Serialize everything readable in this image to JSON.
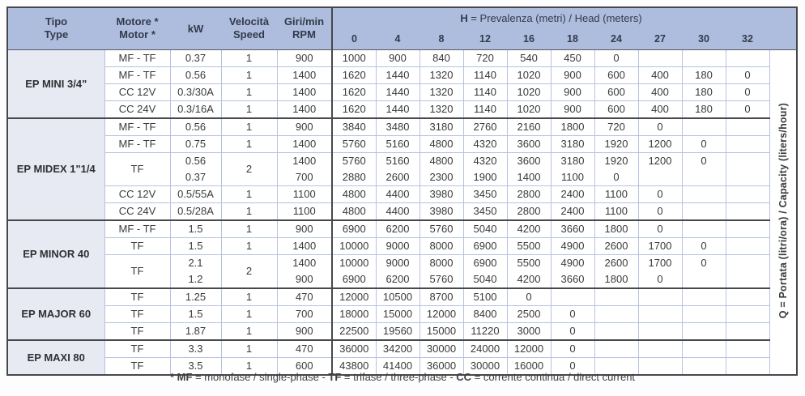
{
  "header": {
    "tipo": [
      "Tipo",
      "Type"
    ],
    "motore": [
      "Motore *",
      "Motor *"
    ],
    "kw": "kW",
    "velocita": [
      "Velocità",
      "Speed"
    ],
    "giri": [
      "Giri/min",
      "RPM"
    ],
    "h_title": {
      "bold": "H",
      "rest": " = Prevalenza (metri) / Head (meters)"
    },
    "head_cols": [
      "0",
      "4",
      "8",
      "12",
      "16",
      "18",
      "24",
      "27",
      "30",
      "32"
    ]
  },
  "q_label": "Q = Portata (litri/ora) / Capacity (liters/hour)",
  "colors": {
    "header_blue": "#aebcde",
    "group_lavender": "#e7e9f3",
    "grid_light": "#b5c2e2",
    "grid_dark": "#47484b"
  },
  "groups": [
    {
      "name": "EP MINI 3/4\"",
      "rows": [
        {
          "motor": "MF - TF",
          "kw": [
            "0.37"
          ],
          "speed": "1",
          "rpm": [
            "900"
          ],
          "q": [
            [
              "1000"
            ],
            [
              "900"
            ],
            [
              "840"
            ],
            [
              "720"
            ],
            [
              "540"
            ],
            [
              "450"
            ],
            [
              "0"
            ],
            [
              ""
            ],
            [
              ""
            ],
            [
              ""
            ]
          ]
        },
        {
          "motor": "MF - TF",
          "kw": [
            "0.56"
          ],
          "speed": "1",
          "rpm": [
            "1400"
          ],
          "q": [
            [
              "1620"
            ],
            [
              "1440"
            ],
            [
              "1320"
            ],
            [
              "1140"
            ],
            [
              "1020"
            ],
            [
              "900"
            ],
            [
              "600"
            ],
            [
              "400"
            ],
            [
              "180"
            ],
            [
              "0"
            ]
          ]
        },
        {
          "motor": "CC 12V",
          "kw": [
            "0.3/30A"
          ],
          "speed": "1",
          "rpm": [
            "1400"
          ],
          "q": [
            [
              "1620"
            ],
            [
              "1440"
            ],
            [
              "1320"
            ],
            [
              "1140"
            ],
            [
              "1020"
            ],
            [
              "900"
            ],
            [
              "600"
            ],
            [
              "400"
            ],
            [
              "180"
            ],
            [
              "0"
            ]
          ]
        },
        {
          "motor": "CC 24V",
          "kw": [
            "0.3/16A"
          ],
          "speed": "1",
          "rpm": [
            "1400"
          ],
          "q": [
            [
              "1620"
            ],
            [
              "1440"
            ],
            [
              "1320"
            ],
            [
              "1140"
            ],
            [
              "1020"
            ],
            [
              "900"
            ],
            [
              "600"
            ],
            [
              "400"
            ],
            [
              "180"
            ],
            [
              "0"
            ]
          ]
        }
      ]
    },
    {
      "name": "EP MIDEX 1\"1/4",
      "rows": [
        {
          "motor": "MF - TF",
          "kw": [
            "0.56"
          ],
          "speed": "1",
          "rpm": [
            "900"
          ],
          "q": [
            [
              "3840"
            ],
            [
              "3480"
            ],
            [
              "3180"
            ],
            [
              "2760"
            ],
            [
              "2160"
            ],
            [
              "1800"
            ],
            [
              "720"
            ],
            [
              "0"
            ],
            [
              ""
            ],
            [
              ""
            ]
          ]
        },
        {
          "motor": "MF - TF",
          "kw": [
            "0.75"
          ],
          "speed": "1",
          "rpm": [
            "1400"
          ],
          "q": [
            [
              "5760"
            ],
            [
              "5160"
            ],
            [
              "4800"
            ],
            [
              "4320"
            ],
            [
              "3600"
            ],
            [
              "3180"
            ],
            [
              "1920"
            ],
            [
              "1200"
            ],
            [
              "0"
            ],
            [
              ""
            ]
          ]
        },
        {
          "motor": "TF",
          "double": true,
          "kw": [
            "0.56",
            "0.37"
          ],
          "speed": "2",
          "rpm": [
            "1400",
            "700"
          ],
          "q": [
            [
              "5760",
              "2880"
            ],
            [
              "5160",
              "2600"
            ],
            [
              "4800",
              "2300"
            ],
            [
              "4320",
              "1900"
            ],
            [
              "3600",
              "1400"
            ],
            [
              "3180",
              "1100"
            ],
            [
              "1920",
              "0"
            ],
            [
              "1200",
              ""
            ],
            [
              "0",
              ""
            ],
            [
              "",
              ""
            ]
          ]
        },
        {
          "motor": "CC 12V",
          "kw": [
            "0.5/55A"
          ],
          "speed": "1",
          "rpm": [
            "1100"
          ],
          "q": [
            [
              "4800"
            ],
            [
              "4400"
            ],
            [
              "3980"
            ],
            [
              "3450"
            ],
            [
              "2800"
            ],
            [
              "2400"
            ],
            [
              "1100"
            ],
            [
              "0"
            ],
            [
              ""
            ],
            [
              ""
            ]
          ]
        },
        {
          "motor": "CC 24V",
          "kw": [
            "0.5/28A"
          ],
          "speed": "1",
          "rpm": [
            "1100"
          ],
          "q": [
            [
              "4800"
            ],
            [
              "4400"
            ],
            [
              "3980"
            ],
            [
              "3450"
            ],
            [
              "2800"
            ],
            [
              "2400"
            ],
            [
              "1100"
            ],
            [
              "0"
            ],
            [
              ""
            ],
            [
              ""
            ]
          ]
        }
      ]
    },
    {
      "name": "EP MINOR 40",
      "rows": [
        {
          "motor": "MF - TF",
          "kw": [
            "1.5"
          ],
          "speed": "1",
          "rpm": [
            "900"
          ],
          "q": [
            [
              "6900"
            ],
            [
              "6200"
            ],
            [
              "5760"
            ],
            [
              "5040"
            ],
            [
              "4200"
            ],
            [
              "3660"
            ],
            [
              "1800"
            ],
            [
              "0"
            ],
            [
              ""
            ],
            [
              ""
            ]
          ]
        },
        {
          "motor": "TF",
          "kw": [
            "1.5"
          ],
          "speed": "1",
          "rpm": [
            "1400"
          ],
          "q": [
            [
              "10000"
            ],
            [
              "9000"
            ],
            [
              "8000"
            ],
            [
              "6900"
            ],
            [
              "5500"
            ],
            [
              "4900"
            ],
            [
              "2600"
            ],
            [
              "1700"
            ],
            [
              "0"
            ],
            [
              ""
            ]
          ]
        },
        {
          "motor": "TF",
          "double": true,
          "kw": [
            "2.1",
            "1.2"
          ],
          "speed": "2",
          "rpm": [
            "1400",
            "900"
          ],
          "q": [
            [
              "10000",
              "6900"
            ],
            [
              "9000",
              "6200"
            ],
            [
              "8000",
              "5760"
            ],
            [
              "6900",
              "5040"
            ],
            [
              "5500",
              "4200"
            ],
            [
              "4900",
              "3660"
            ],
            [
              "2600",
              "1800"
            ],
            [
              "1700",
              "0"
            ],
            [
              "0",
              ""
            ],
            [
              "",
              ""
            ]
          ]
        }
      ]
    },
    {
      "name": "EP MAJOR 60",
      "rows": [
        {
          "motor": "TF",
          "kw": [
            "1.25"
          ],
          "speed": "1",
          "rpm": [
            "470"
          ],
          "q": [
            [
              "12000"
            ],
            [
              "10500"
            ],
            [
              "8700"
            ],
            [
              "5100"
            ],
            [
              "0"
            ],
            [
              ""
            ],
            [
              ""
            ],
            [
              ""
            ],
            [
              ""
            ],
            [
              ""
            ]
          ]
        },
        {
          "motor": "TF",
          "kw": [
            "1.5"
          ],
          "speed": "1",
          "rpm": [
            "700"
          ],
          "q": [
            [
              "18000"
            ],
            [
              "15000"
            ],
            [
              "12000"
            ],
            [
              "8400"
            ],
            [
              "2500"
            ],
            [
              "0"
            ],
            [
              ""
            ],
            [
              ""
            ],
            [
              ""
            ],
            [
              ""
            ]
          ]
        },
        {
          "motor": "TF",
          "kw": [
            "1.87"
          ],
          "speed": "1",
          "rpm": [
            "900"
          ],
          "q": [
            [
              "22500"
            ],
            [
              "19560"
            ],
            [
              "15000"
            ],
            [
              "11220"
            ],
            [
              "3000"
            ],
            [
              "0"
            ],
            [
              ""
            ],
            [
              ""
            ],
            [
              ""
            ],
            [
              ""
            ]
          ]
        }
      ]
    },
    {
      "name": "EP MAXI 80",
      "rows": [
        {
          "motor": "TF",
          "kw": [
            "3.3"
          ],
          "speed": "1",
          "rpm": [
            "470"
          ],
          "q": [
            [
              "36000"
            ],
            [
              "34200"
            ],
            [
              "30000"
            ],
            [
              "24000"
            ],
            [
              "12000"
            ],
            [
              "0"
            ],
            [
              ""
            ],
            [
              ""
            ],
            [
              ""
            ],
            [
              ""
            ]
          ]
        },
        {
          "motor": "TF",
          "kw": [
            "3.5"
          ],
          "speed": "1",
          "rpm": [
            "600"
          ],
          "q": [
            [
              "43800"
            ],
            [
              "41400"
            ],
            [
              "36000"
            ],
            [
              "30000"
            ],
            [
              "16000"
            ],
            [
              "0"
            ],
            [
              ""
            ],
            [
              ""
            ],
            [
              ""
            ],
            [
              ""
            ]
          ]
        }
      ]
    }
  ],
  "footnote": [
    {
      "t": "* MF",
      "b": true
    },
    {
      "t": " = monofase / single-phase - ",
      "b": false
    },
    {
      "t": "TF",
      "b": true
    },
    {
      "t": " = trifase / three-phase - ",
      "b": false
    },
    {
      "t": "CC",
      "b": true
    },
    {
      "t": " = corrente continua / direct current",
      "b": false
    }
  ]
}
